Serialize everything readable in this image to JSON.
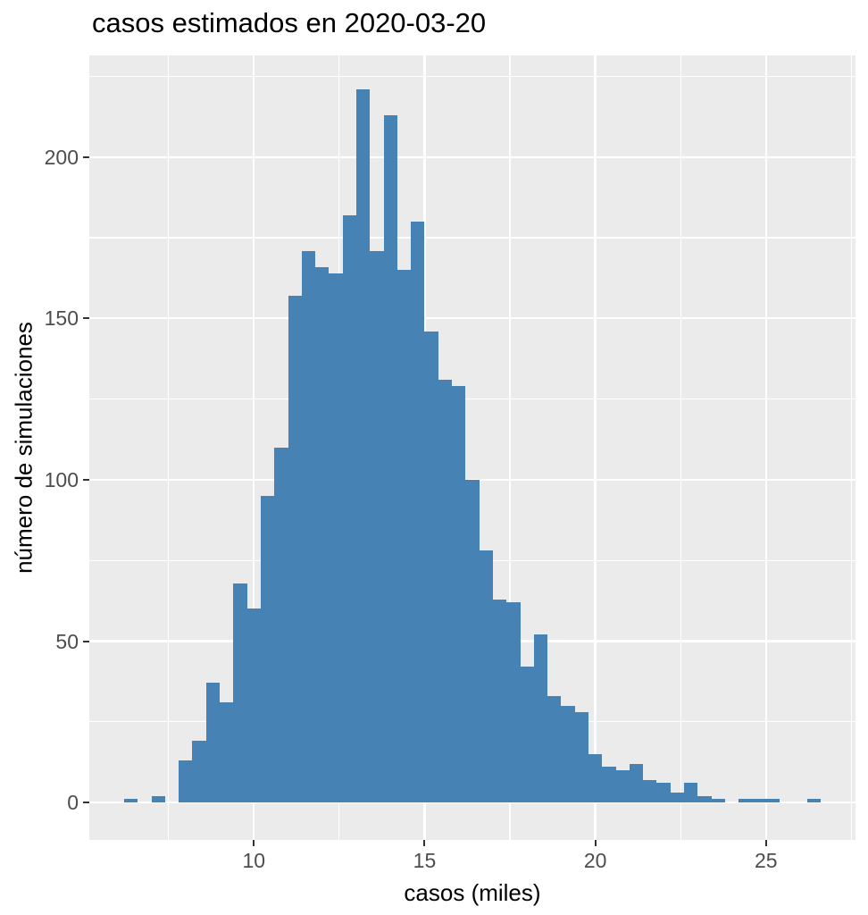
{
  "title": "casos estimados en 2020-03-20",
  "panel": {
    "background_color": "#EBEBEB",
    "grid_color": "#FFFFFF",
    "tick_mark_color": "#333333",
    "tick_label_color": "#4D4D4D"
  },
  "axes": {
    "x": {
      "label": "casos (miles)",
      "major_ticks": [
        10,
        15,
        20,
        25
      ],
      "minor_ticks": [
        7.5,
        12.5,
        17.5,
        22.5,
        27.5
      ],
      "range": [
        5.18,
        27.62
      ]
    },
    "y": {
      "label": "número de simulaciones",
      "major_ticks": [
        0,
        50,
        100,
        150,
        200
      ],
      "minor_ticks": [
        25,
        75,
        125,
        175,
        225
      ],
      "range": [
        -11.6,
        231.5
      ]
    }
  },
  "chart_data": {
    "type": "bar",
    "subtype": "histogram",
    "title": "casos estimados en 2020-03-20",
    "xlabel": "casos (miles)",
    "ylabel": "número de simulaciones",
    "bar_color": "#4682B4",
    "grid": true,
    "legend": false,
    "bin_start": 6.2,
    "bin_width": 0.4,
    "counts": [
      1,
      0,
      2,
      0,
      13,
      19,
      37,
      31,
      68,
      60,
      95,
      110,
      157,
      171,
      166,
      164,
      182,
      221,
      171,
      213,
      165,
      180,
      146,
      131,
      129,
      100,
      78,
      63,
      62,
      42,
      52,
      33,
      30,
      28,
      15,
      11,
      10,
      12,
      7,
      6,
      3,
      6,
      2,
      1,
      0,
      1,
      1,
      1,
      0,
      0,
      1
    ],
    "xlim": [
      5.18,
      27.62
    ],
    "ylim": [
      -11.6,
      231.5
    ]
  }
}
